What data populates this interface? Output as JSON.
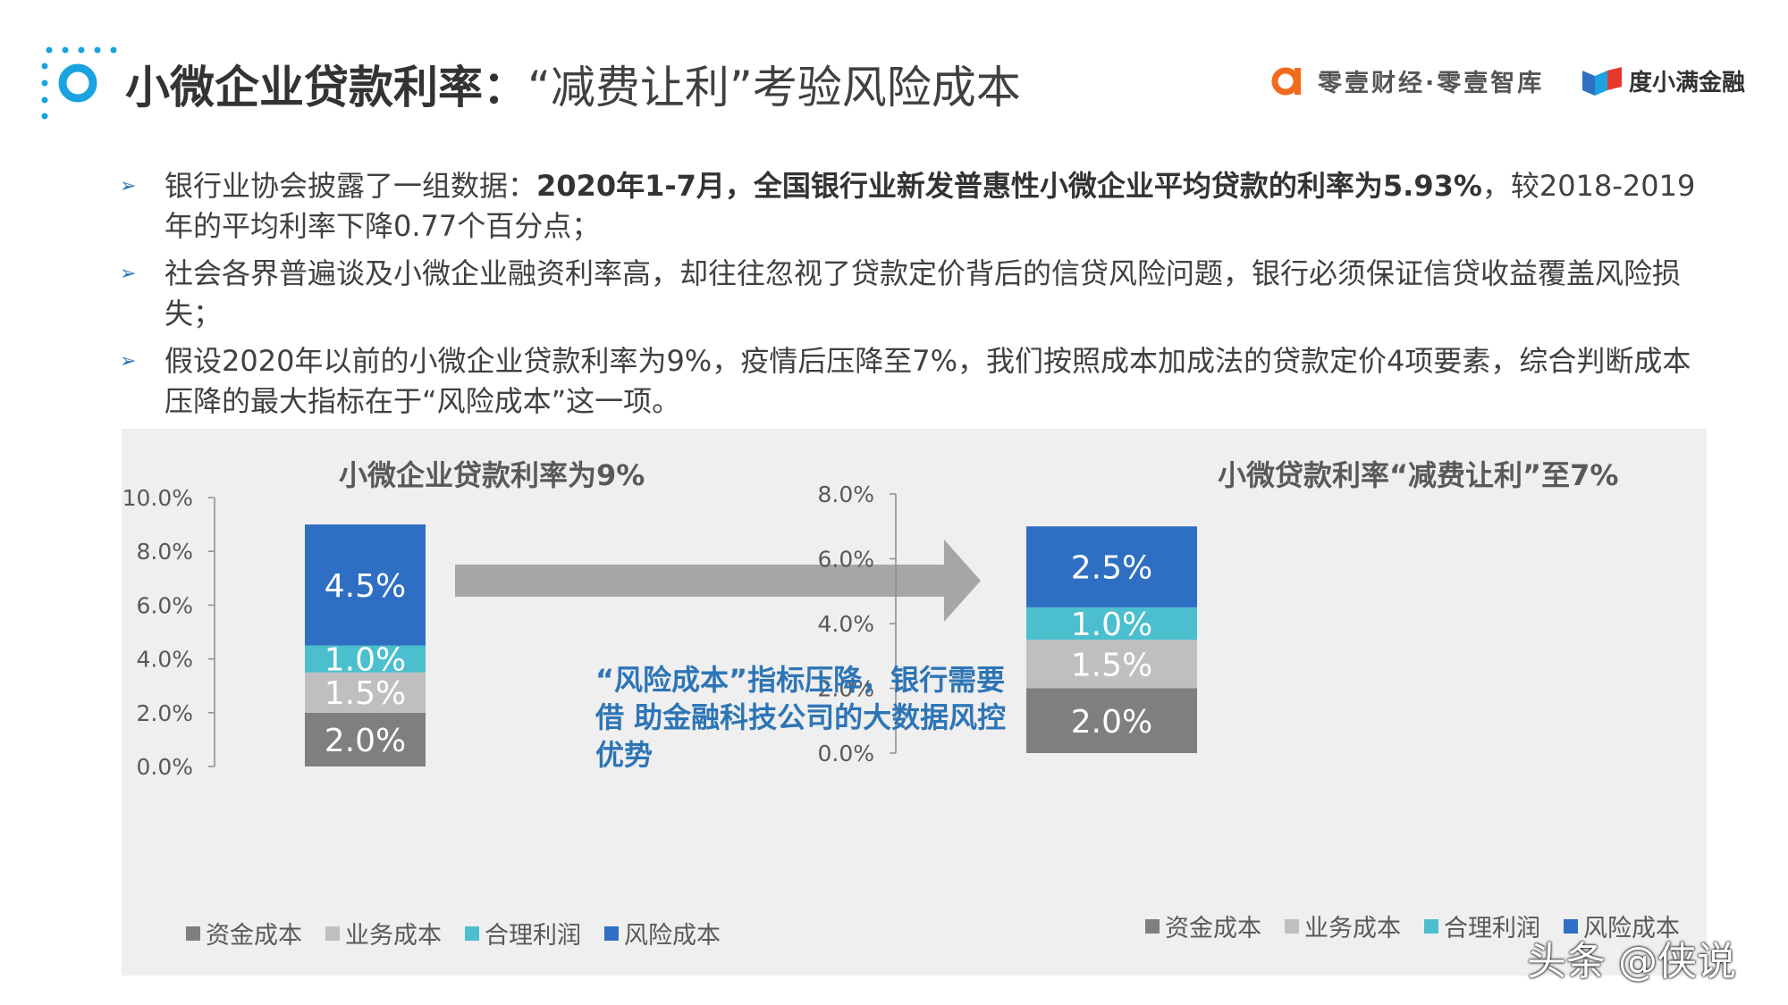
{
  "header": {
    "title_main": "小微企业贷款利率：",
    "title_sub": "“减费让利”考验风险成本",
    "brand_left": "零壹财经·零壹智库",
    "brand_right": "度小满金融"
  },
  "bullets": [
    {
      "pre": "银行业协会披露了一组数据：",
      "bold": "2020年1-7月，全国银行业新发普惠性小微企业平均贷款的利率为5.93%",
      "post": "，较2018-2019年的平均利率下降0.77个百分点；"
    },
    {
      "pre": "社会各界普遍谈及小微企业融资利率高，却往往忽视了贷款定价背后的信贷风险问题，银行必须保证信贷收益覆盖风险损失；",
      "bold": "",
      "post": ""
    },
    {
      "pre": "假设2020年以前的小微企业贷款利率为9%，疫情后压降至7%，我们按照成本加成法的贷款定价4项要素，综合判断成本压降的最大指标在于“风险成本”这一项。",
      "bold": "",
      "post": ""
    }
  ],
  "callout": "“风险成本”指标压降，银行需要借 助金融科技公司的大数据风控优势",
  "colors": {
    "资金成本": "#7f7f7f",
    "业务成本": "#bfbfbf",
    "合理利润": "#4bbfcd",
    "风险成本": "#2f6fc3",
    "arrow": "#a6a6a6"
  },
  "chart_data": [
    {
      "type": "bar",
      "stacked": true,
      "title": "小微企业贷款利率为9%",
      "ylim": [
        0,
        10
      ],
      "yticks": [
        "0.0%",
        "2.0%",
        "4.0%",
        "6.0%",
        "8.0%",
        "10.0%"
      ],
      "series": [
        {
          "name": "资金成本",
          "values": [
            2.0
          ],
          "label": "2.0%"
        },
        {
          "name": "业务成本",
          "values": [
            1.5
          ],
          "label": "1.5%"
        },
        {
          "name": "合理利润",
          "values": [
            1.0
          ],
          "label": "1.0%"
        },
        {
          "name": "风险成本",
          "values": [
            4.5
          ],
          "label": "4.5%"
        }
      ],
      "legend": [
        "资金成本",
        "业务成本",
        "合理利润",
        "风险成本"
      ],
      "legend_position": "bottom"
    },
    {
      "type": "bar",
      "stacked": true,
      "title": "小微贷款利率“减费让利”至7%",
      "ylim": [
        0,
        8
      ],
      "yticks": [
        "0.0%",
        "2.0%",
        "4.0%",
        "6.0%",
        "8.0%"
      ],
      "series": [
        {
          "name": "资金成本",
          "values": [
            2.0
          ],
          "label": "2.0%"
        },
        {
          "name": "业务成本",
          "values": [
            1.5
          ],
          "label": "1.5%"
        },
        {
          "name": "合理利润",
          "values": [
            1.0
          ],
          "label": "1.0%"
        },
        {
          "name": "风险成本",
          "values": [
            2.5
          ],
          "label": "2.5%"
        }
      ],
      "legend": [
        "资金成本",
        "业务成本",
        "合理利润",
        "风险成本"
      ],
      "legend_position": "bottom"
    }
  ],
  "watermark": "头条 @侠说"
}
